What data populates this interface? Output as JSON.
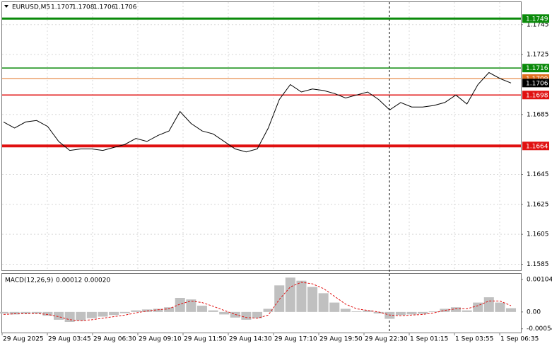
{
  "chart_data": [
    {
      "type": "line",
      "title": "EURUSD,M5",
      "ohlc": [
        1.1707,
        1.1708,
        1.1706,
        1.1706
      ],
      "color": "#000000",
      "values": [
        1.168,
        1.1676,
        1.168,
        1.1681,
        1.1677,
        1.1667,
        1.1661,
        1.1662,
        1.1662,
        1.1661,
        1.1663,
        1.1665,
        1.1669,
        1.1667,
        1.1671,
        1.1674,
        1.1687,
        1.1679,
        1.1674,
        1.1672,
        1.1667,
        1.1662,
        1.166,
        1.1662,
        1.1676,
        1.1695,
        1.1705,
        1.17,
        1.1702,
        1.1701,
        1.1699,
        1.1696,
        1.1698,
        1.17,
        1.1695,
        1.1688,
        1.1693,
        1.169,
        1.169,
        1.1691,
        1.1693,
        1.1698,
        1.1692,
        1.1705,
        1.1713,
        1.1709,
        1.1706
      ],
      "ylim": [
        1.1581,
        1.176
      ],
      "yticks": [
        1.1745,
        1.1725,
        1.1685,
        1.1645,
        1.1625,
        1.1605,
        1.1585
      ],
      "grid": true,
      "levels": [
        {
          "value": 1.1749,
          "color": "#0a8a0a",
          "width": 3
        },
        {
          "value": 1.1716,
          "color": "#0a8a0a",
          "width": 1.5
        },
        {
          "value": 1.1709,
          "color": "#e07020",
          "width": 1
        },
        {
          "value": 1.1706,
          "color": "#000000",
          "width": 0
        },
        {
          "value": 1.1698,
          "color": "#e01010",
          "width": 1.5
        },
        {
          "value": 1.1664,
          "color": "#e01010",
          "width": 4
        }
      ],
      "x_labels": [
        "29 Aug 2025",
        "29 Aug 03:45",
        "29 Aug 06:30",
        "29 Aug 09:10",
        "29 Aug 11:50",
        "29 Aug 14:30",
        "29 Aug 17:10",
        "29 Aug 19:50",
        "29 Aug 22:30",
        "1 Sep 01:15",
        "1 Sep 03:55",
        "1 Sep 06:35"
      ]
    },
    {
      "type": "macd",
      "title": "MACD(12,26,9)",
      "readout": [
        "0.00012",
        "0.00020"
      ],
      "ylim": [
        -0.00066,
        0.00122
      ],
      "yticks": [
        0.00104,
        {
          "value": 0,
          "label": "0.00"
        },
        -0.00054
      ],
      "histogram": {
        "color": "#c0c0c0",
        "values": [
          -5e-05,
          -8e-05,
          -5e-05,
          -5e-05,
          -0.00012,
          -0.00025,
          -0.00032,
          -0.00028,
          -0.0002,
          -0.00015,
          -0.0001,
          -4e-05,
          5e-05,
          8e-05,
          0.0001,
          0.00015,
          0.00045,
          0.0004,
          0.0002,
          5e-05,
          -8e-05,
          -0.00018,
          -0.00025,
          -0.0002,
          0.0001,
          0.00085,
          0.0011,
          0.001,
          0.0008,
          0.0006,
          0.0003,
          0.0001,
          2e-05,
          5e-05,
          -5e-05,
          -0.00022,
          -0.0001,
          -8e-05,
          -6e-05,
          2e-05,
          0.0001,
          0.00015,
          5e-05,
          0.0003,
          0.00047,
          0.0003,
          0.00012
        ]
      },
      "signal": {
        "color": "#e01010",
        "values": [
          -8e-05,
          -6e-05,
          -6e-05,
          -5e-05,
          -8e-05,
          -0.00015,
          -0.00025,
          -0.00028,
          -0.00025,
          -0.0002,
          -0.00015,
          -0.0001,
          -3e-05,
          3e-05,
          7e-05,
          0.0001,
          0.00025,
          0.00035,
          0.0003,
          0.00018,
          5e-05,
          -8e-05,
          -0.00018,
          -0.0002,
          -0.0001,
          0.0004,
          0.0008,
          0.00095,
          0.0009,
          0.00075,
          0.0005,
          0.00025,
          0.0001,
          5e-05,
          0,
          -0.0001,
          -0.00012,
          -0.0001,
          -8e-05,
          -3e-05,
          5e-05,
          0.0001,
          0.0001,
          0.0002,
          0.00035,
          0.00035,
          0.0002
        ]
      }
    }
  ]
}
